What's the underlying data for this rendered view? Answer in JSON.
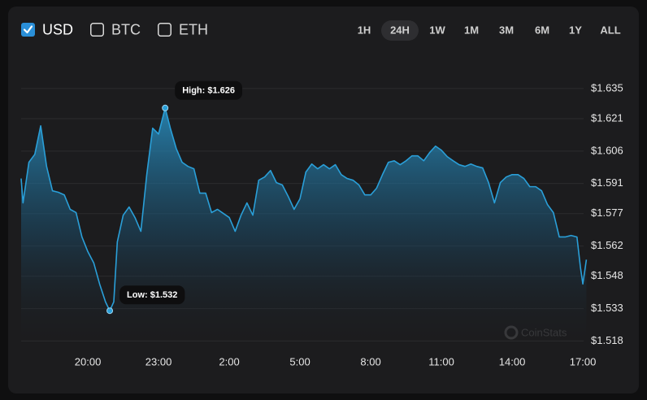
{
  "controls": {
    "currencies": [
      {
        "label": "USD",
        "checked": true
      },
      {
        "label": "BTC",
        "checked": false
      },
      {
        "label": "ETH",
        "checked": false
      }
    ],
    "ranges": [
      {
        "label": "1H",
        "active": false
      },
      {
        "label": "24H",
        "active": true
      },
      {
        "label": "1W",
        "active": false
      },
      {
        "label": "1M",
        "active": false
      },
      {
        "label": "3M",
        "active": false
      },
      {
        "label": "6M",
        "active": false
      },
      {
        "label": "1Y",
        "active": false
      },
      {
        "label": "ALL",
        "active": false
      }
    ]
  },
  "chart_data": {
    "type": "area",
    "watermark": "CoinStats",
    "annotations": [
      "High: $1.626",
      "Low: $1.532"
    ],
    "x": [
      17.17,
      17.25,
      17.5,
      17.75,
      18,
      18.25,
      18.5,
      18.75,
      19,
      19.25,
      19.5,
      19.75,
      20,
      20.25,
      20.5,
      20.75,
      20.93,
      21.1,
      21.25,
      21.5,
      21.75,
      22,
      22.25,
      22.5,
      22.75,
      23,
      23.28,
      23.5,
      23.75,
      24,
      24.25,
      24.5,
      24.75,
      25,
      25.25,
      25.5,
      25.75,
      26,
      26.25,
      26.5,
      26.75,
      27,
      27.25,
      27.5,
      27.75,
      28,
      28.25,
      28.5,
      28.75,
      29,
      29.25,
      29.5,
      29.75,
      30,
      30.25,
      30.5,
      30.75,
      31,
      31.25,
      31.5,
      31.75,
      32,
      32.25,
      32.5,
      32.75,
      33,
      33.25,
      33.5,
      33.75,
      34,
      34.25,
      34.5,
      34.75,
      35,
      35.25,
      35.5,
      35.75,
      36,
      36.25,
      36.5,
      36.75,
      37,
      37.25,
      37.5,
      37.75,
      38,
      38.25,
      38.5,
      38.75,
      39,
      39.25,
      39.5,
      39.75,
      40,
      40.25,
      40.5,
      40.75,
      40.9,
      41,
      41.15
    ],
    "series": [
      {
        "name": "USD",
        "color": "#2a9fd8",
        "values": [
          1.5933,
          1.582,
          1.6008,
          1.6045,
          1.6177,
          1.5989,
          1.5876,
          1.5869,
          1.5857,
          1.579,
          1.5775,
          1.5662,
          1.5594,
          1.5542,
          1.5444,
          1.5361,
          1.532,
          1.5361,
          1.5639,
          1.5763,
          1.5801,
          1.5752,
          1.5688,
          1.5951,
          1.6166,
          1.6139,
          1.626,
          1.6166,
          1.6072,
          1.6008,
          1.5989,
          1.5978,
          1.5865,
          1.5865,
          1.5775,
          1.579,
          1.5771,
          1.5752,
          1.5688,
          1.5763,
          1.582,
          1.5763,
          1.5925,
          1.594,
          1.597,
          1.5914,
          1.5903,
          1.585,
          1.579,
          1.5839,
          1.5963,
          1.6,
          1.5978,
          1.5997,
          1.5978,
          1.5997,
          1.5951,
          1.5933,
          1.5925,
          1.5903,
          1.5857,
          1.5857,
          1.5888,
          1.5951,
          1.6008,
          1.6015,
          1.5997,
          1.6015,
          1.6038,
          1.6038,
          1.6015,
          1.6053,
          1.6083,
          1.6064,
          1.6034,
          1.6015,
          1.5997,
          1.5989,
          1.6,
          1.5989,
          1.5982,
          1.5914,
          1.582,
          1.5914,
          1.594,
          1.5951,
          1.5951,
          1.5933,
          1.5895,
          1.5895,
          1.5876,
          1.5812,
          1.5775,
          1.5662,
          1.5662,
          1.5669,
          1.5662,
          1.5519,
          1.5444,
          1.5557
        ]
      }
    ],
    "xlim": [
      17.17,
      41.17
    ],
    "xticks": [
      {
        "value": 20,
        "label": "20:00"
      },
      {
        "value": 23,
        "label": "23:00"
      },
      {
        "value": 26,
        "label": "2:00"
      },
      {
        "value": 29,
        "label": "5:00"
      },
      {
        "value": 32,
        "label": "8:00"
      },
      {
        "value": 35,
        "label": "11:00"
      },
      {
        "value": 38,
        "label": "14:00"
      },
      {
        "value": 41,
        "label": "17:00"
      }
    ],
    "ylim": [
      1.514,
      1.644
    ],
    "yticks": [
      {
        "value": 1.635,
        "label": "$1.635"
      },
      {
        "value": 1.621,
        "label": "$1.621"
      },
      {
        "value": 1.606,
        "label": "$1.606"
      },
      {
        "value": 1.591,
        "label": "$1.591"
      },
      {
        "value": 1.577,
        "label": "$1.577"
      },
      {
        "value": 1.562,
        "label": "$1.562"
      },
      {
        "value": 1.548,
        "label": "$1.548"
      },
      {
        "value": 1.533,
        "label": "$1.533"
      },
      {
        "value": 1.518,
        "label": "$1.518"
      }
    ],
    "grid": true
  }
}
